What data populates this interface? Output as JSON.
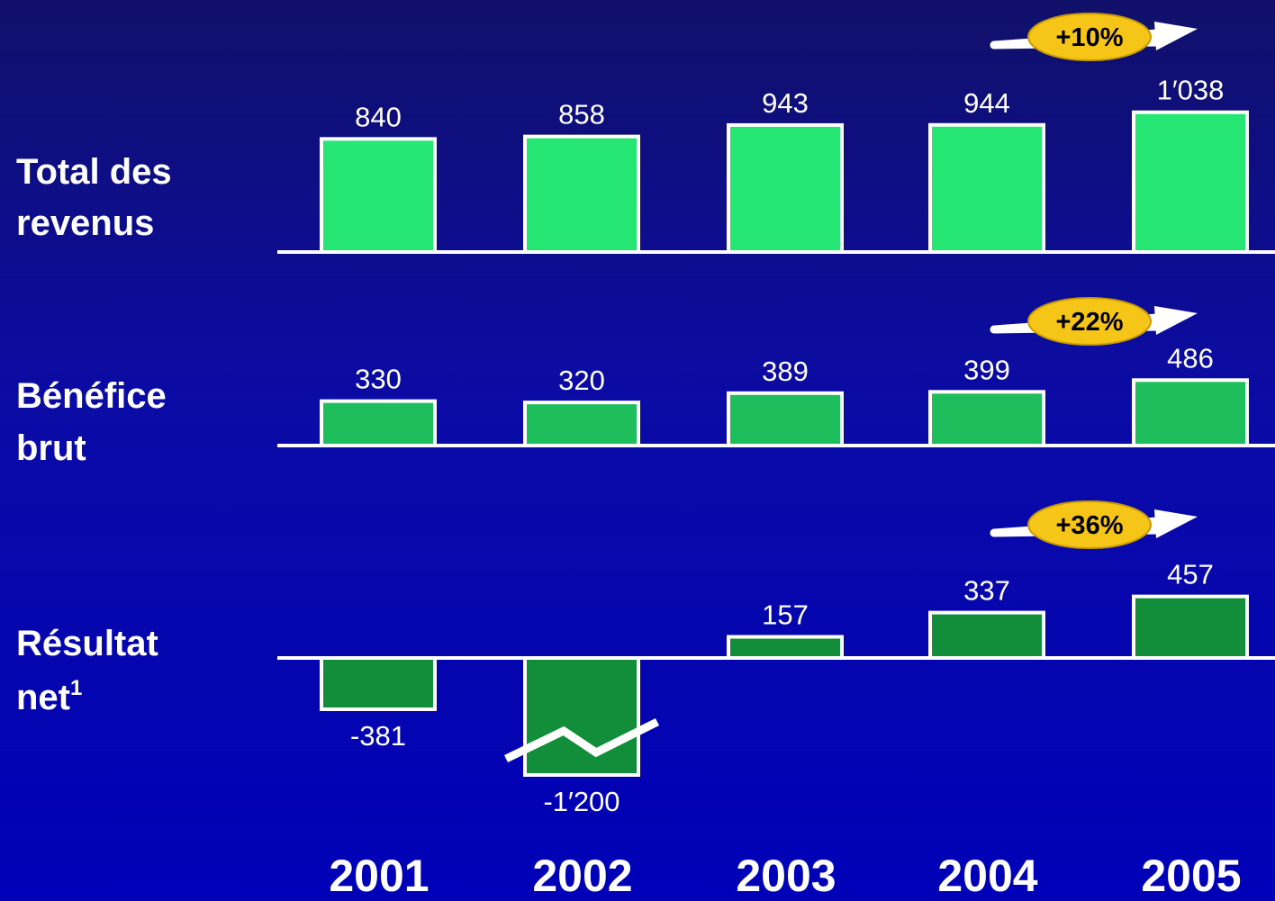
{
  "chart_data": {
    "type": "bar",
    "categories": [
      "2001",
      "2002",
      "2003",
      "2004",
      "2005"
    ],
    "series": [
      {
        "key": "revenus",
        "label_line1": "Total des",
        "label_line2": "revenus",
        "label_sup": "",
        "values": [
          840,
          858,
          943,
          944,
          1038
        ],
        "value_labels": [
          "840",
          "858",
          "943",
          "944",
          "1′038"
        ],
        "growth": "+10%",
        "color": "#26e673"
      },
      {
        "key": "benefice",
        "label_line1": "Bénéfice",
        "label_line2": "brut",
        "label_sup": "",
        "values": [
          330,
          320,
          389,
          399,
          486
        ],
        "value_labels": [
          "330",
          "320",
          "389",
          "399",
          "486"
        ],
        "growth": "+22%",
        "color": "#1fbe5c"
      },
      {
        "key": "resultat",
        "label_line1": "Résultat",
        "label_line2": "net",
        "label_sup": "1",
        "values": [
          -381,
          -1200,
          157,
          337,
          457
        ],
        "value_labels": [
          "-381",
          "-1′200",
          "157",
          "337",
          "457"
        ],
        "growth": "+36%",
        "color": "#128e3b",
        "axis_break_category": "2002"
      }
    ]
  },
  "colors": {
    "bar_outline": "#ffffff",
    "growth_badge": "#f5c518",
    "text": "#ffffff"
  }
}
